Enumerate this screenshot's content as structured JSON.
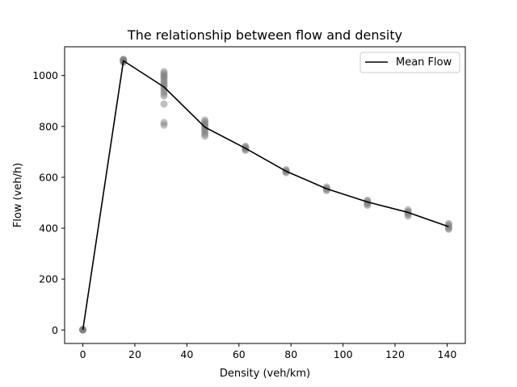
{
  "chart_data": {
    "type": "scatter",
    "title": "The relationship between flow and density",
    "xlabel": "Density (veh/km)",
    "ylabel": "Flow (veh/h)",
    "xlim": [
      -7,
      147
    ],
    "ylim": [
      -53,
      1113
    ],
    "xticks": [
      0,
      20,
      40,
      60,
      80,
      100,
      120,
      140
    ],
    "yticks": [
      0,
      200,
      400,
      600,
      800,
      1000
    ],
    "grid": false,
    "legend": {
      "placement": "top-right",
      "entries": [
        "Mean Flow"
      ]
    },
    "series": [
      {
        "name": "",
        "type": "scatter",
        "color": "#808080",
        "points": [
          [
            0,
            0
          ],
          [
            0,
            1
          ],
          [
            0,
            2
          ],
          [
            0,
            0
          ],
          [
            0,
            1
          ],
          [
            15.6,
            1052
          ],
          [
            15.6,
            1056
          ],
          [
            15.6,
            1060
          ],
          [
            15.6,
            1062
          ],
          [
            15.6,
            1058
          ],
          [
            15.6,
            1064
          ],
          [
            15.6,
            1055
          ],
          [
            31.2,
            1015
          ],
          [
            31.2,
            1008
          ],
          [
            31.2,
            1000
          ],
          [
            31.2,
            995
          ],
          [
            31.2,
            988
          ],
          [
            31.2,
            980
          ],
          [
            31.2,
            972
          ],
          [
            31.2,
            965
          ],
          [
            31.2,
            958
          ],
          [
            31.2,
            950
          ],
          [
            31.2,
            940
          ],
          [
            31.2,
            930
          ],
          [
            31.2,
            920
          ],
          [
            31.2,
            888
          ],
          [
            31.2,
            815
          ],
          [
            31.2,
            805
          ],
          [
            46.9,
            825
          ],
          [
            46.9,
            818
          ],
          [
            46.9,
            812
          ],
          [
            46.9,
            806
          ],
          [
            46.9,
            800
          ],
          [
            46.9,
            793
          ],
          [
            46.9,
            786
          ],
          [
            46.9,
            778
          ],
          [
            46.9,
            770
          ],
          [
            46.9,
            762
          ],
          [
            62.5,
            722
          ],
          [
            62.5,
            718
          ],
          [
            62.5,
            714
          ],
          [
            62.5,
            710
          ],
          [
            62.5,
            706
          ],
          [
            78.1,
            630
          ],
          [
            78.1,
            626
          ],
          [
            78.1,
            622
          ],
          [
            78.1,
            618
          ],
          [
            93.7,
            562
          ],
          [
            93.7,
            557
          ],
          [
            93.7,
            552
          ],
          [
            93.7,
            548
          ],
          [
            109.4,
            510
          ],
          [
            109.4,
            505
          ],
          [
            109.4,
            500
          ],
          [
            109.4,
            495
          ],
          [
            109.4,
            490
          ],
          [
            125.0,
            472
          ],
          [
            125.0,
            466
          ],
          [
            125.0,
            460
          ],
          [
            125.0,
            455
          ],
          [
            125.0,
            448
          ],
          [
            140.6,
            418
          ],
          [
            140.6,
            412
          ],
          [
            140.6,
            406
          ],
          [
            140.6,
            400
          ],
          [
            140.6,
            396
          ]
        ]
      },
      {
        "name": "Mean Flow",
        "type": "line",
        "color": "#000000",
        "x": [
          0,
          15.6,
          31.2,
          46.9,
          62.5,
          78.1,
          93.7,
          109.4,
          125.0,
          140.6
        ],
        "y": [
          0,
          1058,
          955,
          797,
          714,
          624,
          555,
          503,
          462,
          406
        ]
      }
    ]
  }
}
